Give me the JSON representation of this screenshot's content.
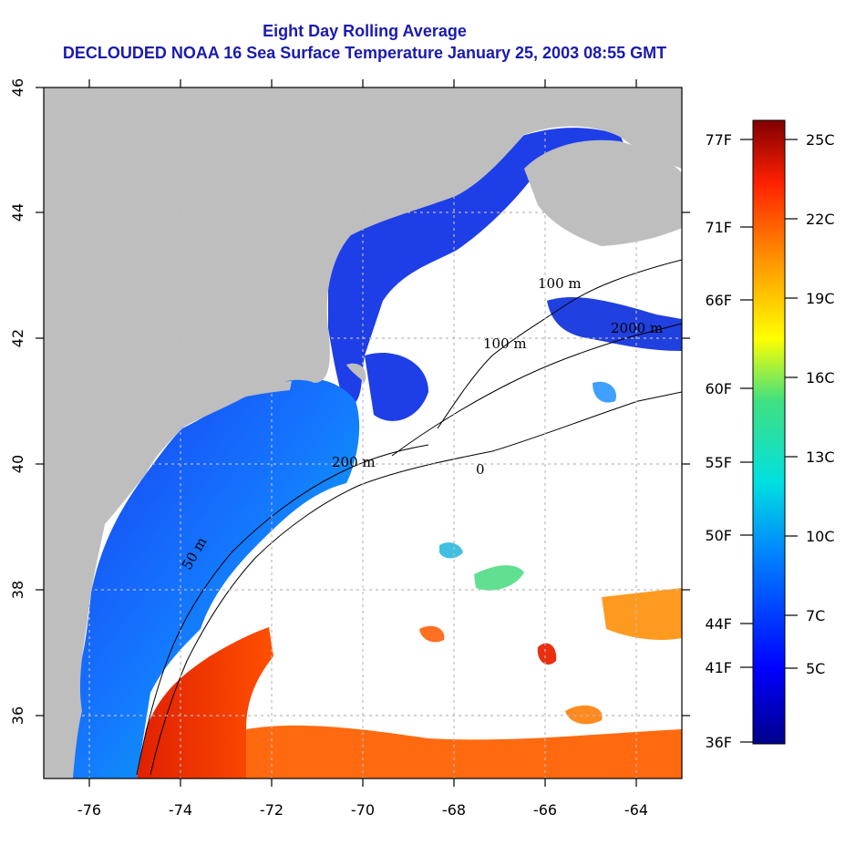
{
  "title": {
    "line1": "Eight Day Rolling Average",
    "line2": "DECLOUDED NOAA 16 Sea Surface Temperature January 25, 2003 08:55 GMT"
  },
  "map": {
    "lon_range": [
      -77,
      -63
    ],
    "lat_range": [
      35,
      46
    ],
    "x_ticks": [
      "-76",
      "-74",
      "-72",
      "-70",
      "-68",
      "-66",
      "-64"
    ],
    "y_ticks": [
      "36",
      "38",
      "40",
      "42",
      "44",
      "46"
    ],
    "contour_labels": [
      "50 m",
      "200 m",
      "100 m",
      "100 m",
      "2000 m",
      "0"
    ]
  },
  "colorbar": {
    "celsius_labels": [
      "25C",
      "22C",
      "19C",
      "16C",
      "13C",
      "10C",
      "7C",
      "5C"
    ],
    "fahrenheit_labels": [
      "77F",
      "71F",
      "66F",
      "60F",
      "55F",
      "50F",
      "44F",
      "41F",
      "36F"
    ]
  },
  "colors": {
    "land": "#bebebe",
    "title": "#1a1ab0"
  }
}
